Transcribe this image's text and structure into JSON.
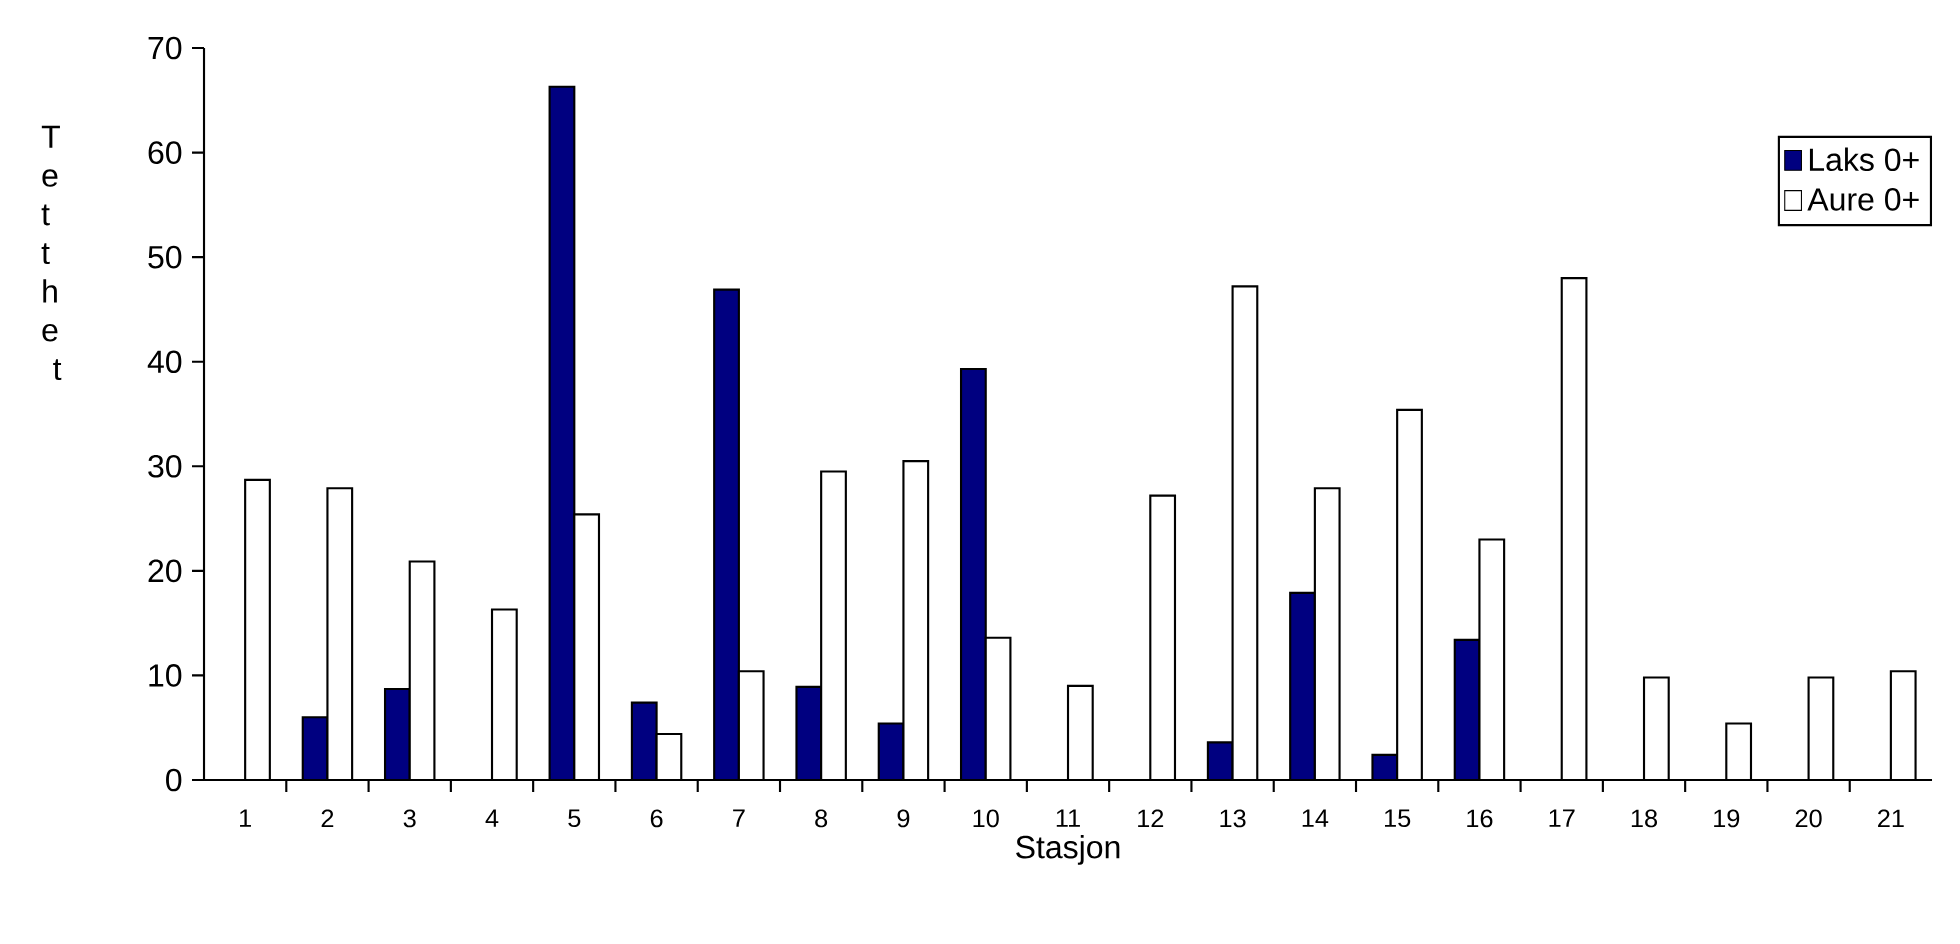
{
  "chart_data": {
    "type": "bar",
    "xlabel": "Stasjon",
    "ylabel": "Tetthet",
    "categories": [
      "1",
      "2",
      "3",
      "4",
      "5",
      "6",
      "7",
      "8",
      "9",
      "10",
      "11",
      "12",
      "13",
      "14",
      "15",
      "16",
      "17",
      "18",
      "19",
      "20",
      "21"
    ],
    "series": [
      {
        "name": "Laks 0+",
        "color": "#000080",
        "values": [
          null,
          6.0,
          8.7,
          null,
          66.3,
          7.4,
          46.9,
          8.9,
          5.4,
          39.3,
          null,
          null,
          3.6,
          17.9,
          2.4,
          13.4,
          null,
          null,
          null,
          null,
          null
        ]
      },
      {
        "name": "Aure 0+",
        "color": "#ffffff",
        "values": [
          28.7,
          27.9,
          20.9,
          16.3,
          25.4,
          4.4,
          10.4,
          29.5,
          30.5,
          13.6,
          9.0,
          27.2,
          47.2,
          27.9,
          35.4,
          23.0,
          48.0,
          9.8,
          5.4,
          9.8,
          10.4
        ]
      }
    ],
    "ylim": [
      0,
      70
    ],
    "yticks": [
      0,
      10,
      20,
      30,
      40,
      50,
      60,
      70
    ],
    "grid": false,
    "legend": "top right"
  }
}
